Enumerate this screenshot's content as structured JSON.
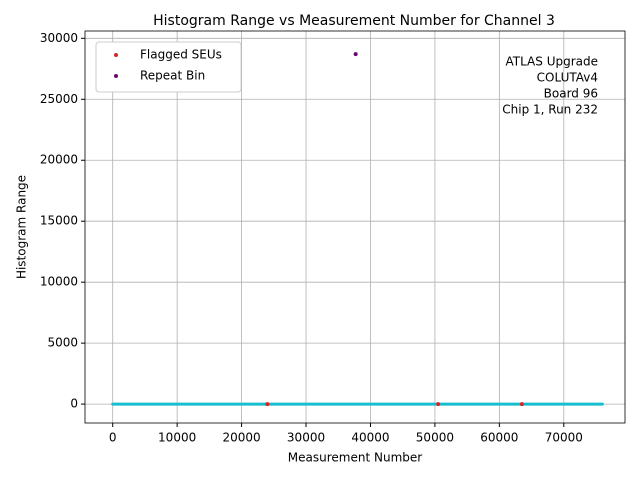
{
  "chart_data": {
    "type": "scatter",
    "title": "Histogram Range vs Measurement Number for Channel 3",
    "x_label": "Measurement Number",
    "y_label": "Histogram Range",
    "annotation": [
      "ATLAS Upgrade",
      "COLUTAv4",
      "Board 96",
      "Chip 1, Run 232"
    ],
    "series": [
      {
        "color": "#17becf",
        "marker": "line",
        "x": [
          0,
          76000
        ],
        "values": [
          0,
          0
        ]
      },
      {
        "name": "Flagged SEUs",
        "color": "#d62728",
        "marker": "dot",
        "x": [
          24000,
          50500,
          63500
        ],
        "values": [
          0,
          0,
          0
        ]
      },
      {
        "name": "Repeat Bin",
        "color": "#6a0a6a",
        "marker": "dot",
        "x": [
          37700
        ],
        "values": [
          28700
        ]
      }
    ],
    "xlim": [
      -4300,
      79500
    ],
    "ylim": [
      -1550,
      30600
    ],
    "xticks": [
      0,
      10000,
      20000,
      30000,
      40000,
      50000,
      60000,
      70000
    ],
    "yticks": [
      0,
      5000,
      10000,
      15000,
      20000,
      25000,
      30000
    ],
    "grid": true,
    "legend": "upper-left"
  }
}
